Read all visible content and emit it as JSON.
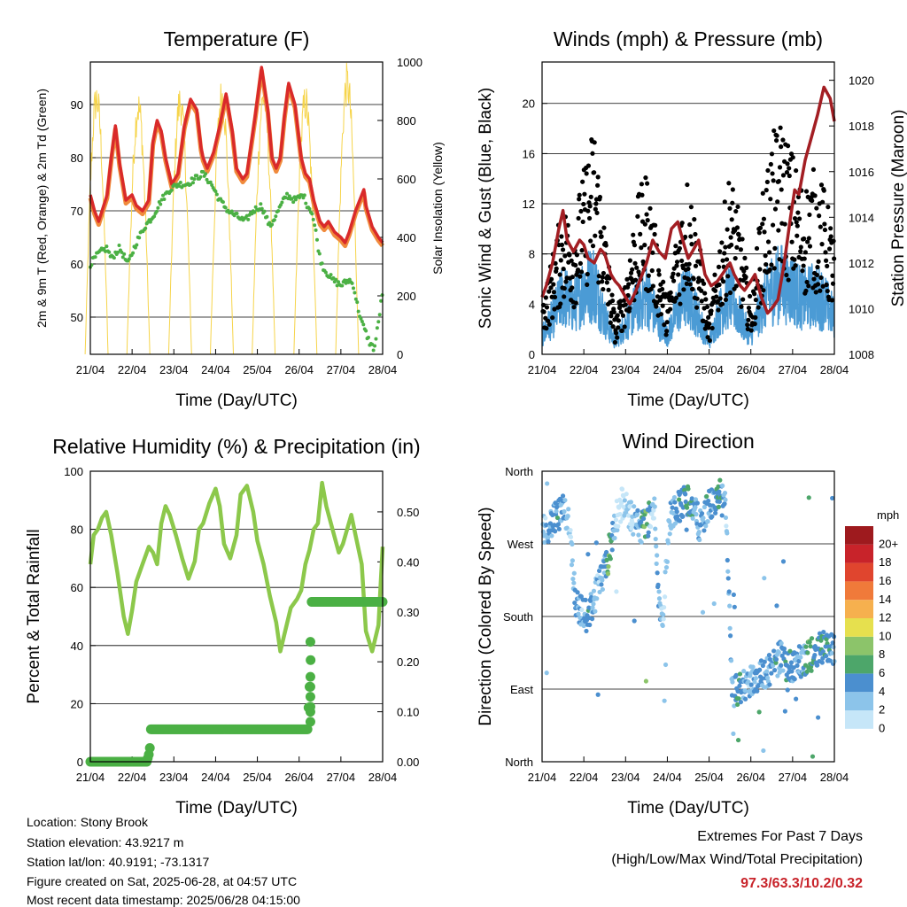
{
  "time_ticks": [
    "21/04",
    "22/04",
    "23/04",
    "24/04",
    "25/04",
    "26/04",
    "27/04",
    "28/04"
  ],
  "time_label": "Time (Day/UTC)",
  "colors": {
    "temp_2m": "#d92a2a",
    "temp_9m": "#f08a3c",
    "dewpoint": "#4bb044",
    "solar": "#f6d44a",
    "wind": "#4b9bd5",
    "gust": "#000000",
    "pressure": "#a31e23",
    "rh": "#8cc84b",
    "precip": "#4bb044",
    "extremes_value": "#c8232a"
  },
  "chart_data": [
    {
      "id": "temperature",
      "type": "line",
      "title": "Temperature (F)",
      "xlabel": "Time (Day/UTC)",
      "ylabel": "2m & 9m T (Red, Orange) & 2m Td (Green)",
      "ylabel_right": "Solar Insolation (Yellow)",
      "xlim": [
        0,
        7
      ],
      "ylim": [
        43,
        98
      ],
      "ylim_right": [
        0,
        1000
      ],
      "yticks": [
        50,
        60,
        70,
        80,
        90
      ],
      "yticks_right": [
        0,
        200,
        400,
        600,
        800,
        1000
      ],
      "grid": true,
      "series": [
        {
          "name": "2m T",
          "x": [
            0,
            0.1,
            0.2,
            0.4,
            0.5,
            0.6,
            0.7,
            0.85,
            1.0,
            1.1,
            1.25,
            1.4,
            1.5,
            1.6,
            1.7,
            1.8,
            1.95,
            2.1,
            2.25,
            2.4,
            2.55,
            2.65,
            2.7,
            2.8,
            2.95,
            3.1,
            3.25,
            3.4,
            3.5,
            3.65,
            3.75,
            3.95,
            4.1,
            4.25,
            4.35,
            4.45,
            4.55,
            4.65,
            4.75,
            4.9,
            5.05,
            5.15,
            5.25,
            5.35,
            5.5,
            5.6,
            5.7,
            5.85,
            6.0,
            6.1,
            6.2,
            6.35,
            6.55,
            6.6,
            6.75,
            6.9,
            7.0
          ],
          "values": [
            73,
            70,
            68,
            73,
            80,
            86,
            79,
            72,
            73,
            71,
            70,
            72,
            83,
            87,
            85,
            80,
            75,
            77,
            86,
            91,
            89,
            82,
            80,
            78,
            81,
            86,
            92,
            85,
            78,
            76,
            77,
            88,
            97,
            89,
            80,
            78,
            80,
            88,
            94,
            90,
            80,
            77,
            76,
            72,
            68,
            67,
            68,
            66,
            65,
            64,
            66,
            70,
            74,
            71,
            67,
            65,
            64
          ]
        },
        {
          "name": "2m Td",
          "x": [
            0,
            0.2,
            0.4,
            0.5,
            0.7,
            0.9,
            1.1,
            1.3,
            1.5,
            1.7,
            1.9,
            2.1,
            2.3,
            2.5,
            2.7,
            2.9,
            3.1,
            3.3,
            3.5,
            3.7,
            3.9,
            4.1,
            4.3,
            4.5,
            4.7,
            4.9,
            5.1,
            5.2,
            5.3,
            5.4,
            5.5,
            5.6,
            5.8,
            6.0,
            6.2,
            6.3,
            6.4,
            6.5,
            6.6,
            6.7,
            6.8,
            6.9,
            7.0
          ],
          "values": [
            60,
            62,
            63,
            61,
            63,
            60,
            64,
            67,
            69,
            72,
            74,
            75,
            75,
            76,
            77,
            75,
            72,
            70,
            69,
            68,
            70,
            71,
            67,
            70,
            73,
            72,
            73,
            71,
            70,
            66,
            61,
            59,
            57,
            56,
            57,
            56,
            52,
            49,
            47,
            45,
            44,
            49,
            55
          ]
        },
        {
          "name": "Solar Insolation",
          "axis": "right",
          "peak_x": [
            0.15,
            1.15,
            2.15,
            3.15,
            4.15,
            5.15,
            6.15
          ],
          "peak_values": [
            940,
            910,
            930,
            950,
            950,
            930,
            1000
          ]
        }
      ]
    },
    {
      "id": "winds",
      "type": "scatter",
      "title": "Winds (mph) & Pressure (mb)",
      "xlabel": "Time (Day/UTC)",
      "ylabel": "Sonic Wind & Gust (Blue, Black)",
      "ylabel_right": "Station Pressure (Maroon)",
      "xlim": [
        0,
        7
      ],
      "ylim": [
        0,
        23.3
      ],
      "ylim_right": [
        1008,
        1020.8
      ],
      "yticks": [
        0,
        4,
        8,
        12,
        16,
        20
      ],
      "yticks_right": [
        1008,
        1010,
        1012,
        1014,
        1016,
        1018,
        1020
      ],
      "grid": true,
      "series": [
        {
          "name": "Wind",
          "x": [
            0,
            0.25,
            0.5,
            0.75,
            1.0,
            1.25,
            1.5,
            1.75,
            2.0,
            2.25,
            2.5,
            2.75,
            3.0,
            3.25,
            3.5,
            3.75,
            4.0,
            4.25,
            4.5,
            4.75,
            5.0,
            5.25,
            5.5,
            5.75,
            6.0,
            6.25,
            6.5,
            6.75,
            7.0
          ],
          "values": [
            1.5,
            3,
            5,
            4,
            5.5,
            6,
            3,
            1,
            2.5,
            4,
            5,
            3,
            1.5,
            4,
            5,
            3,
            1,
            3.5,
            5,
            3,
            1.5,
            4,
            5.5,
            6,
            5.5,
            4.5,
            5,
            4.5,
            3
          ]
        },
        {
          "name": "Gust",
          "x": [
            0,
            0.25,
            0.5,
            0.75,
            1.0,
            1.25,
            1.5,
            1.75,
            2.0,
            2.25,
            2.5,
            2.75,
            3.0,
            3.25,
            3.5,
            3.75,
            4.0,
            4.25,
            4.5,
            4.75,
            5.0,
            5.25,
            5.5,
            5.75,
            6.0,
            6.25,
            6.5,
            6.75,
            7.0
          ],
          "values": [
            3,
            6,
            9,
            8,
            11,
            14,
            8,
            2,
            5,
            9,
            11,
            7,
            3,
            8,
            11,
            7,
            2,
            7,
            11,
            8,
            3,
            9,
            13,
            14,
            12,
            10,
            11,
            10,
            7
          ]
        },
        {
          "name": "Station Pressure",
          "axis": "right",
          "x": [
            0,
            0.1,
            0.25,
            0.4,
            0.5,
            0.6,
            0.75,
            0.9,
            1.0,
            1.1,
            1.25,
            1.4,
            1.5,
            1.65,
            1.75,
            1.85,
            2.0,
            2.1,
            2.25,
            2.4,
            2.5,
            2.65,
            2.8,
            2.95,
            3.1,
            3.25,
            3.4,
            3.5,
            3.6,
            3.75,
            3.9,
            4.05,
            4.2,
            4.35,
            4.5,
            4.6,
            4.75,
            4.85,
            5.0,
            5.1,
            5.25,
            5.4,
            5.5,
            5.65,
            5.8,
            5.95,
            6.05,
            6.15,
            6.3,
            6.45,
            6.6,
            6.75,
            6.9,
            7.0
          ],
          "values": [
            1010.5,
            1011,
            1012,
            1013.5,
            1014.3,
            1013,
            1012.5,
            1013,
            1012.8,
            1012.2,
            1012,
            1012.6,
            1012.4,
            1011.5,
            1011.2,
            1011,
            1010.5,
            1010.2,
            1010.8,
            1011.5,
            1012,
            1013,
            1012.5,
            1012.2,
            1013.5,
            1013.8,
            1012.8,
            1012.2,
            1012.5,
            1013,
            1011.5,
            1011,
            1011.2,
            1011.6,
            1012,
            1011.5,
            1011,
            1010.8,
            1011.2,
            1011.5,
            1010.5,
            1009.8,
            1010,
            1010.4,
            1012,
            1014,
            1015.2,
            1015,
            1016.5,
            1017.5,
            1018.5,
            1019.7,
            1019.2,
            1018.2
          ]
        }
      ]
    },
    {
      "id": "humidity",
      "type": "line",
      "title": "Relative Humidity (%) & Precipitation (in)",
      "xlabel": "Time (Day/UTC)",
      "ylabel": "Percent & Total Rainfall",
      "xlim": [
        0,
        7
      ],
      "ylim": [
        0,
        100
      ],
      "ylim_right": [
        0,
        0.5814
      ],
      "yticks": [
        0,
        20,
        40,
        60,
        80,
        100
      ],
      "yticks_right": [
        "0.00",
        "0.10",
        "0.20",
        "0.30",
        "0.40",
        "0.50"
      ],
      "grid": true,
      "series": [
        {
          "name": "Relative Humidity",
          "x": [
            0,
            0.08,
            0.18,
            0.28,
            0.38,
            0.5,
            0.65,
            0.8,
            0.9,
            1.0,
            1.1,
            1.25,
            1.4,
            1.5,
            1.6,
            1.7,
            1.8,
            1.9,
            2.05,
            2.2,
            2.35,
            2.5,
            2.6,
            2.7,
            2.85,
            3.0,
            3.1,
            3.2,
            3.35,
            3.5,
            3.6,
            3.75,
            3.9,
            4.0,
            4.15,
            4.3,
            4.45,
            4.55,
            4.65,
            4.8,
            4.95,
            5.05,
            5.15,
            5.25,
            5.35,
            5.45,
            5.55,
            5.65,
            5.8,
            5.95,
            6.05,
            6.15,
            6.25,
            6.35,
            6.5,
            6.6,
            6.75,
            6.9,
            7.0
          ],
          "values": [
            68,
            78,
            80,
            84,
            86,
            78,
            65,
            50,
            44,
            52,
            62,
            68,
            74,
            72,
            68,
            82,
            88,
            85,
            78,
            70,
            63,
            69,
            80,
            82,
            89,
            94,
            88,
            75,
            70,
            78,
            92,
            95,
            86,
            76,
            68,
            57,
            48,
            38,
            44,
            53,
            56,
            59,
            68,
            73,
            80,
            82,
            96,
            88,
            80,
            72,
            75,
            80,
            85,
            78,
            68,
            45,
            38,
            47,
            74
          ]
        },
        {
          "name": "Total Rainfall",
          "axis": "right",
          "x": [
            0,
            1.35,
            1.42,
            1.45,
            5.2,
            5.22,
            5.25,
            5.27,
            5.3,
            7.0
          ],
          "values": [
            0,
            0,
            0.02,
            0.065,
            0.065,
            0.1,
            0.15,
            0.18,
            0.32,
            0.32
          ]
        }
      ]
    },
    {
      "id": "direction",
      "type": "scatter",
      "title": "Wind Direction",
      "xlabel": "Time (Day/UTC)",
      "ylabel": "Direction (Colored By Speed)",
      "xlim": [
        0,
        7
      ],
      "ylim": [
        0,
        360
      ],
      "yticks": [
        "North",
        "East",
        "South",
        "West",
        "North"
      ],
      "grid": true,
      "colorbar": {
        "title": "mph",
        "levels": [
          "0",
          "2",
          "4",
          "6",
          "8",
          "10",
          "12",
          "14",
          "16",
          "18",
          "20+"
        ],
        "colors": [
          "#c6e6f8",
          "#8cc4ea",
          "#4b8fcf",
          "#4da66a",
          "#8cc46a",
          "#e6e04e",
          "#f6b04e",
          "#f07a3a",
          "#e0452e",
          "#c8232a",
          "#9e1a1e"
        ]
      },
      "series": [
        {
          "name": "Direction",
          "x": [
            0.1,
            0.3,
            0.5,
            0.65,
            0.8,
            0.95,
            1.1,
            1.3,
            1.5,
            1.6,
            1.75,
            1.9,
            2.05,
            2.2,
            2.35,
            2.5,
            2.6,
            2.7,
            2.8,
            2.9,
            3.05,
            3.2,
            3.35,
            3.5,
            3.65,
            3.8,
            3.95,
            4.1,
            4.25,
            4.4,
            4.55,
            4.7,
            4.85,
            5.0,
            5.15,
            5.3,
            5.4,
            5.55,
            5.7,
            5.85,
            6.0,
            6.2,
            6.4,
            6.6,
            6.8,
            6.95
          ],
          "values": [
            290,
            300,
            310,
            300,
            200,
            185,
            180,
            210,
            235,
            250,
            300,
            320,
            310,
            300,
            290,
            295,
            305,
            310,
            195,
            180,
            300,
            315,
            320,
            325,
            310,
            290,
            315,
            320,
            330,
            315,
            85,
            90,
            95,
            100,
            105,
            110,
            112,
            120,
            130,
            120,
            115,
            125,
            130,
            140,
            145,
            140
          ],
          "speeds": [
            3,
            5,
            4,
            2,
            4,
            3,
            5,
            3,
            4,
            8,
            2,
            1,
            2,
            3,
            4,
            9,
            3,
            2,
            4,
            2,
            3,
            4,
            5,
            7,
            4,
            3,
            5,
            4,
            6,
            3,
            4,
            6,
            4,
            3,
            5,
            4,
            3,
            5,
            4,
            6,
            5,
            4,
            7,
            5,
            6,
            4
          ]
        }
      ]
    }
  ],
  "info": {
    "location": "Location: Stony Brook",
    "elevation": "Station elevation: 43.9217 m",
    "latlon": "Station lat/lon: 40.9191; -73.1317",
    "created": "Figure created on Sat, 2025-06-28, at 04:57 UTC",
    "recent": "Most recent data timestamp: 2025/06/28 04:15:00"
  },
  "extremes": {
    "title": "Extremes For Past 7 Days",
    "subtitle": "(High/Low/Max Wind/Total Precipitation)",
    "values": "97.3/63.3/10.2/0.32"
  }
}
